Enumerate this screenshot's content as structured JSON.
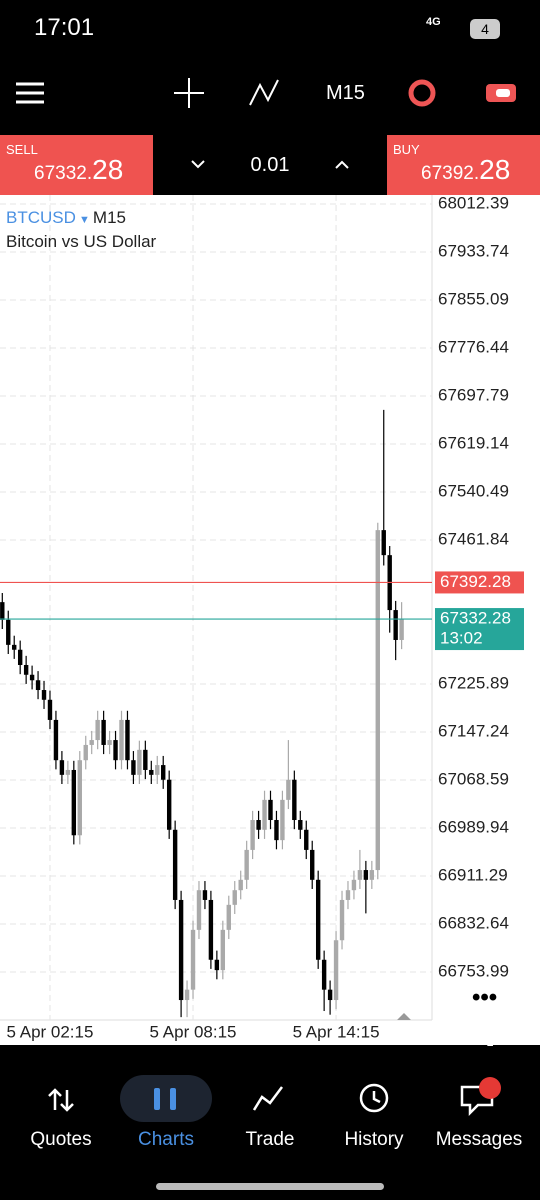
{
  "status_bar": {
    "time": "17:01",
    "network": "4G",
    "battery": "4"
  },
  "toolbar": {
    "timeframe": "M15"
  },
  "trade_panel": {
    "sell": {
      "label": "SELL",
      "price_main": "67332.",
      "price_pips": "28"
    },
    "lot": "0.01",
    "buy": {
      "label": "BUY",
      "price_main": "67392.",
      "price_pips": "28"
    }
  },
  "chart_data": {
    "type": "candlestick",
    "symbol": "BTCUSD",
    "timeframe": "M15",
    "description": "Bitcoin vs US Dollar",
    "up_color": "#a9a9a9",
    "down_color": "#000000",
    "open": [
      67360,
      67331,
      67290,
      67282,
      67257,
      67241,
      67232,
      67216,
      67200,
      67167,
      67101,
      67077,
      67085,
      66978,
      67101,
      67126,
      67134,
      67167,
      67126,
      67134,
      67101,
      67167,
      67101,
      67077,
      67118,
      67085,
      67077,
      67093,
      67069,
      66987,
      66872,
      66708,
      66725,
      66823,
      66888,
      66872,
      66774,
      66757,
      66823,
      66864,
      66888,
      66905,
      66954,
      67003,
      66987,
      67036,
      67003,
      66970,
      67036,
      67069,
      67003,
      66987,
      66954,
      66905,
      66774,
      66725,
      66708,
      66806,
      66872,
      66888,
      66905,
      66921,
      66905,
      66921,
      67478,
      67437,
      67347,
      67298
    ],
    "high": [
      67375,
      67346,
      67305,
      67297,
      67272,
      67256,
      67247,
      67231,
      67215,
      67182,
      67116,
      67100,
      67100,
      67116,
      67141,
      67149,
      67182,
      67182,
      67149,
      67149,
      67182,
      67182,
      67116,
      67133,
      67133,
      67100,
      67108,
      67108,
      67084,
      67002,
      66887,
      66740,
      66838,
      66903,
      66903,
      66887,
      66789,
      66838,
      66879,
      66903,
      66920,
      66969,
      67018,
      67018,
      67051,
      67051,
      67018,
      67051,
      67134,
      67084,
      67018,
      67002,
      66969,
      66920,
      66789,
      66740,
      66821,
      66887,
      66903,
      66920,
      66954,
      66936,
      66936,
      67490,
      67675,
      67452,
      67362,
      67360
    ],
    "low": [
      67316,
      67275,
      67267,
      67242,
      67226,
      67217,
      67201,
      67185,
      67152,
      67086,
      67062,
      67062,
      66963,
      66963,
      67086,
      67111,
      67119,
      67111,
      67111,
      67086,
      67086,
      67086,
      67062,
      67062,
      67070,
      67062,
      67062,
      67054,
      66972,
      66857,
      66680,
      66680,
      66710,
      66808,
      66857,
      66759,
      66742,
      66742,
      66808,
      66849,
      66873,
      66890,
      66939,
      66972,
      66972,
      66988,
      66955,
      66955,
      67021,
      66988,
      66972,
      66939,
      66890,
      66759,
      66690,
      66684,
      66693,
      66791,
      66857,
      66873,
      66890,
      66850,
      66890,
      66906,
      67420,
      67310,
      67265,
      67283
    ],
    "close": [
      67331,
      67290,
      67282,
      67257,
      67241,
      67232,
      67216,
      67200,
      67167,
      67101,
      67077,
      67085,
      66978,
      67101,
      67126,
      67134,
      67167,
      67126,
      67134,
      67101,
      67167,
      67101,
      67077,
      67118,
      67085,
      67077,
      67093,
      67069,
      66987,
      66872,
      66708,
      66725,
      66823,
      66888,
      66872,
      66774,
      66757,
      66823,
      66864,
      66888,
      66905,
      66954,
      67003,
      66987,
      67036,
      67003,
      66970,
      67036,
      67069,
      67003,
      66987,
      66954,
      66905,
      66774,
      66725,
      66708,
      66806,
      66872,
      66888,
      66905,
      66921,
      66905,
      66921,
      67478,
      67437,
      67347,
      67298,
      67332
    ],
    "ylim": [
      66675.3,
      68025.5
    ],
    "yticks": [
      68012.39,
      67933.74,
      67855.09,
      67776.44,
      67697.79,
      67619.14,
      67540.49,
      67461.84,
      67225.89,
      67147.24,
      67068.59,
      66989.94,
      66911.29,
      66832.64,
      66753.99
    ],
    "xticks": [
      {
        "value": 8,
        "label": "5 Apr 02:15"
      },
      {
        "value": 32,
        "label": "5 Apr 08:15"
      },
      {
        "value": 56,
        "label": "5 Apr 14:15"
      }
    ],
    "grid": true,
    "ask": {
      "value": 67392.28,
      "color": "#ef5350"
    },
    "bid": {
      "value": 67332.28,
      "color": "#26a69a",
      "timer": "13:02"
    }
  },
  "nav": {
    "items": [
      "Quotes",
      "Charts",
      "Trade",
      "History",
      "Messages"
    ],
    "active": "Charts",
    "badge": "1"
  }
}
